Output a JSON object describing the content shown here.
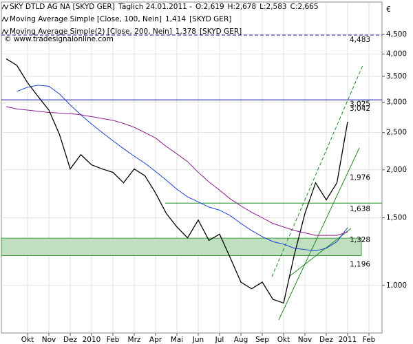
{
  "chart_data": {
    "type": "line",
    "title": "SKY DTLD AG NA [SKYD GER]",
    "subtitle": "Täglich 24.01.2011 -",
    "ohlc_labels": [
      "O:2,619",
      "H:2,678",
      "L:2,583",
      "C:2,665"
    ],
    "watermark": "© www.tradesignalonline.com",
    "currency": "€",
    "log_scale": true,
    "grid": true,
    "categories": [
      null,
      null,
      "Okt",
      null,
      "Nov",
      null,
      "Dez",
      null,
      "2010",
      null,
      "Feb",
      null,
      "Mrz",
      null,
      "Apr",
      null,
      "Mai",
      null,
      "Jun",
      null,
      "Jul",
      null,
      "Aug",
      null,
      "Sep",
      null,
      "Okt",
      null,
      "Nov",
      null,
      "Dez",
      null,
      "2011",
      null,
      "Feb"
    ],
    "series": [
      {
        "name": "SKY DTLD AG NA [SKYD GER]",
        "color": "#000000",
        "values": [
          3.89,
          3.74,
          3.37,
          3.1,
          2.86,
          2.47,
          2.01,
          2.19,
          2.06,
          2.01,
          1.97,
          1.85,
          2.01,
          1.93,
          1.74,
          1.54,
          1.42,
          1.33,
          1.48,
          1.31,
          1.36,
          1.18,
          1.02,
          0.98,
          1.02,
          0.92,
          0.9,
          1.2,
          1.54,
          1.85,
          1.67,
          1.85,
          2.665,
          null,
          null
        ]
      },
      {
        "name": "Moving Average Simple [Close, 100, Nein]",
        "color": "#1a3fd6",
        "last_label": "1,414",
        "suffix": "[SKYD GER]",
        "values": [
          null,
          3.2,
          3.28,
          3.32,
          3.3,
          3.15,
          2.95,
          2.78,
          2.63,
          2.5,
          2.38,
          2.27,
          2.17,
          2.08,
          1.98,
          1.88,
          1.78,
          1.7,
          1.65,
          1.6,
          1.57,
          1.52,
          1.45,
          1.39,
          1.34,
          1.3,
          1.28,
          1.25,
          1.24,
          1.23,
          1.25,
          1.3,
          1.414,
          null,
          null
        ]
      },
      {
        "name": "Moving Average Simple(2) [Close, 200, Nein]",
        "color": "#8b1a8b",
        "last_label": "1,378",
        "suffix": "[SKYD GER]",
        "values": [
          2.92,
          2.88,
          2.86,
          2.84,
          2.82,
          2.81,
          2.8,
          2.78,
          2.75,
          2.72,
          2.69,
          2.64,
          2.58,
          2.5,
          2.42,
          2.3,
          2.2,
          2.1,
          1.97,
          1.86,
          1.77,
          1.68,
          1.61,
          1.55,
          1.5,
          1.45,
          1.42,
          1.39,
          1.37,
          1.35,
          1.35,
          1.35,
          1.378,
          null,
          null
        ]
      }
    ],
    "levels": [
      {
        "value": 4.483,
        "label": "4,483",
        "color": "#1a1aa0"
      },
      {
        "value": 3.025,
        "label": "3,025",
        "color": "#1f8a1f"
      },
      {
        "value": 3.042,
        "label": "3,042",
        "color": "#1a1aa0"
      },
      {
        "value": 1.976,
        "label": "1,976",
        "color": "#1f8a1f"
      },
      {
        "value": 1.638,
        "label": "1,638",
        "color": "#1f8a1f"
      },
      {
        "value": 1.328,
        "label": "1,328",
        "color": "#1f8a1f"
      },
      {
        "value": 1.196,
        "label": "1,196",
        "color": "#1f8a1f"
      }
    ],
    "ylim": [
      0.752,
      5.42
    ],
    "yticks": [
      {
        "value": 1,
        "label": "1,000"
      },
      {
        "value": 1.5,
        "label": "1,500"
      },
      {
        "value": 2,
        "label": "2,000"
      },
      {
        "value": 2.5,
        "label": "2,500"
      },
      {
        "value": 3,
        "label": "3,000"
      },
      {
        "value": 3.5,
        "label": "3,500"
      },
      {
        "value": 4,
        "label": "4,000"
      },
      {
        "value": 4.5,
        "label": "4,500"
      }
    ]
  }
}
